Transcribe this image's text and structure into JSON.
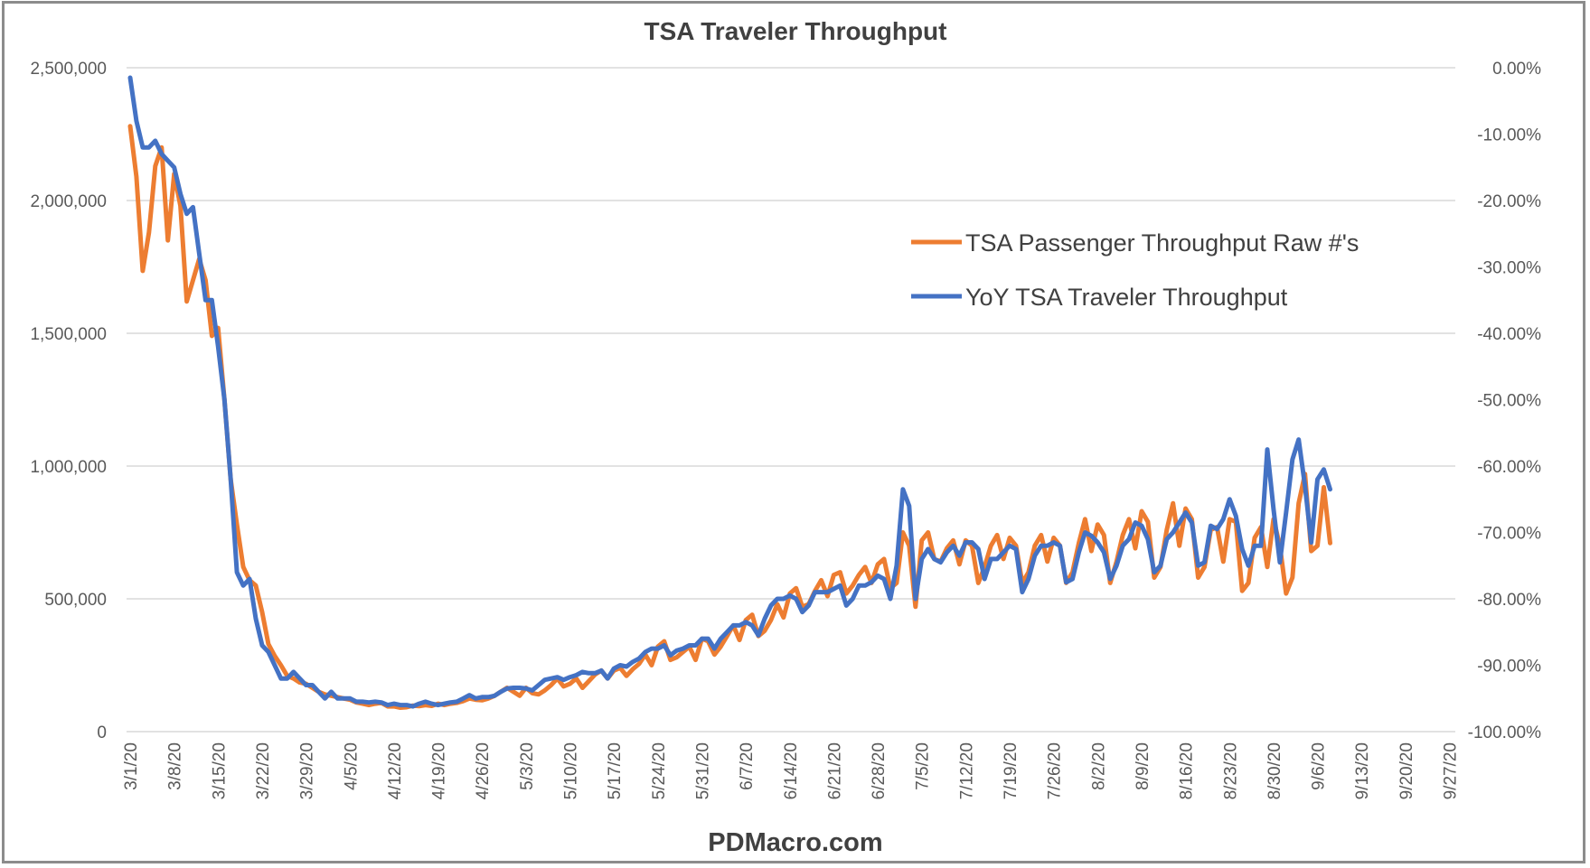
{
  "chart_data": {
    "type": "line",
    "title": "TSA Traveler Throughput",
    "footer": "PDMacro.com",
    "start_date": "3/1/20",
    "x_tick_labels": [
      "3/1/20",
      "3/8/20",
      "3/15/20",
      "3/22/20",
      "3/29/20",
      "4/5/20",
      "4/12/20",
      "4/19/20",
      "4/26/20",
      "5/3/20",
      "5/10/20",
      "5/17/20",
      "5/24/20",
      "5/31/20",
      "6/7/20",
      "6/14/20",
      "6/21/20",
      "6/28/20",
      "7/5/20",
      "7/12/20",
      "7/19/20",
      "7/26/20",
      "8/2/20",
      "8/9/20",
      "8/16/20",
      "8/23/20",
      "8/30/20",
      "9/6/20",
      "9/13/20",
      "9/20/20",
      "9/27/20"
    ],
    "left_axis": {
      "min": 0,
      "max": 2500000,
      "ticks": [
        "0",
        "500,000",
        "1,000,000",
        "1,500,000",
        "2,000,000",
        "2,500,000"
      ],
      "tick_values": [
        0,
        500000,
        1000000,
        1500000,
        2000000,
        2500000
      ]
    },
    "right_axis": {
      "min": -100,
      "max": 0,
      "ticks": [
        "-100.00%",
        "-90.00%",
        "-80.00%",
        "-70.00%",
        "-60.00%",
        "-50.00%",
        "-40.00%",
        "-30.00%",
        "-20.00%",
        "-10.00%",
        "0.00%"
      ],
      "tick_values": [
        -100,
        -90,
        -80,
        -70,
        -60,
        -50,
        -40,
        -30,
        -20,
        -10,
        0
      ]
    },
    "grid": true,
    "legend_position": "upper-right",
    "series": [
      {
        "name": "TSA Passenger Throughput Raw #'s",
        "axis": "left",
        "unit": "thousands of passengers per day",
        "color": "#ED7D31",
        "values": [
          2280,
          2090,
          1735,
          1880,
          2130,
          2200,
          1850,
          2100,
          1980,
          1620,
          1700,
          1780,
          1700,
          1490,
          1520,
          1250,
          950,
          780,
          620,
          570,
          550,
          450,
          330,
          285,
          250,
          210,
          200,
          185,
          180,
          165,
          150,
          140,
          135,
          130,
          125,
          120,
          110,
          105,
          100,
          105,
          108,
          95,
          95,
          90,
          92,
          98,
          96,
          100,
          97,
          105,
          100,
          105,
          108,
          115,
          125,
          120,
          118,
          125,
          135,
          150,
          165,
          150,
          135,
          165,
          145,
          140,
          155,
          175,
          200,
          170,
          180,
          200,
          165,
          190,
          215,
          230,
          200,
          230,
          240,
          210,
          235,
          255,
          290,
          250,
          320,
          340,
          270,
          280,
          300,
          320,
          270,
          350,
          340,
          290,
          320,
          360,
          400,
          345,
          420,
          440,
          360,
          380,
          420,
          480,
          430,
          520,
          540,
          470,
          480,
          530,
          570,
          510,
          590,
          600,
          520,
          550,
          590,
          620,
          560,
          630,
          650,
          540,
          560,
          750,
          700,
          470,
          720,
          750,
          650,
          640,
          690,
          720,
          630,
          720,
          700,
          560,
          620,
          700,
          740,
          650,
          730,
          700,
          560,
          600,
          700,
          740,
          640,
          730,
          700,
          560,
          600,
          710,
          800,
          680,
          780,
          740,
          560,
          640,
          740,
          800,
          690,
          830,
          790,
          580,
          620,
          760,
          860,
          700,
          840,
          800,
          580,
          620,
          760,
          770,
          640,
          800,
          790,
          530,
          560,
          730,
          770,
          620,
          800,
          700,
          520,
          580,
          860,
          970,
          680,
          700,
          920,
          710
        ]
      },
      {
        "name": "YoY TSA Traveler Throughput",
        "axis": "right",
        "unit": "percent",
        "color": "#4472C4",
        "values": [
          -1.5,
          -8,
          -12,
          -12,
          -11,
          -13,
          -14,
          -15,
          -19,
          -22,
          -21,
          -28,
          -35,
          -35,
          -42,
          -50,
          -62,
          -76,
          -78,
          -77,
          -83,
          -87,
          -88,
          -90,
          -92,
          -92,
          -91,
          -92,
          -93,
          -93,
          -94,
          -95,
          -94,
          -95,
          -95,
          -95,
          -95.5,
          -95.5,
          -95.6,
          -95.5,
          -95.6,
          -96,
          -95.8,
          -96,
          -96,
          -96.2,
          -95.8,
          -95.5,
          -95.8,
          -96,
          -95.8,
          -95.6,
          -95.5,
          -95,
          -94.5,
          -95,
          -94.8,
          -94.8,
          -94.6,
          -94,
          -93.5,
          -93.4,
          -93.4,
          -93.5,
          -93.8,
          -93,
          -92.2,
          -92,
          -91.8,
          -92.2,
          -91.8,
          -91.5,
          -91,
          -91.2,
          -91.2,
          -90.8,
          -92,
          -90.5,
          -90,
          -90.2,
          -89.5,
          -89,
          -88,
          -87.5,
          -87.5,
          -87,
          -88.5,
          -87.8,
          -87.5,
          -87,
          -87,
          -86,
          -86,
          -87.5,
          -86,
          -85,
          -84,
          -84,
          -83.5,
          -84,
          -85.5,
          -83,
          -81,
          -80,
          -80,
          -79.5,
          -80,
          -82,
          -81,
          -79,
          -79,
          -79,
          -78.5,
          -78,
          -81,
          -80,
          -78,
          -78,
          -77.5,
          -76.5,
          -77,
          -80,
          -75,
          -63.5,
          -66,
          -80,
          -74,
          -72.5,
          -74,
          -74.5,
          -73,
          -72,
          -73.5,
          -71.5,
          -71.5,
          -72.5,
          -77,
          -74,
          -74,
          -73,
          -72,
          -72.5,
          -79,
          -77,
          -73.5,
          -72,
          -72,
          -71.5,
          -72,
          -77.5,
          -77,
          -73,
          -70,
          -70.5,
          -71.5,
          -73,
          -77,
          -75,
          -72,
          -71,
          -68.5,
          -69,
          -71,
          -76,
          -75,
          -71,
          -70,
          -68.5,
          -67,
          -68.5,
          -75,
          -74.5,
          -69,
          -69.5,
          -68,
          -65,
          -67.5,
          -72.5,
          -75,
          -72,
          -72,
          -57.5,
          -66.5,
          -74.5,
          -67,
          -59,
          -56,
          -63,
          -71.5,
          -62,
          -60.5,
          -63.5
        ]
      }
    ]
  }
}
